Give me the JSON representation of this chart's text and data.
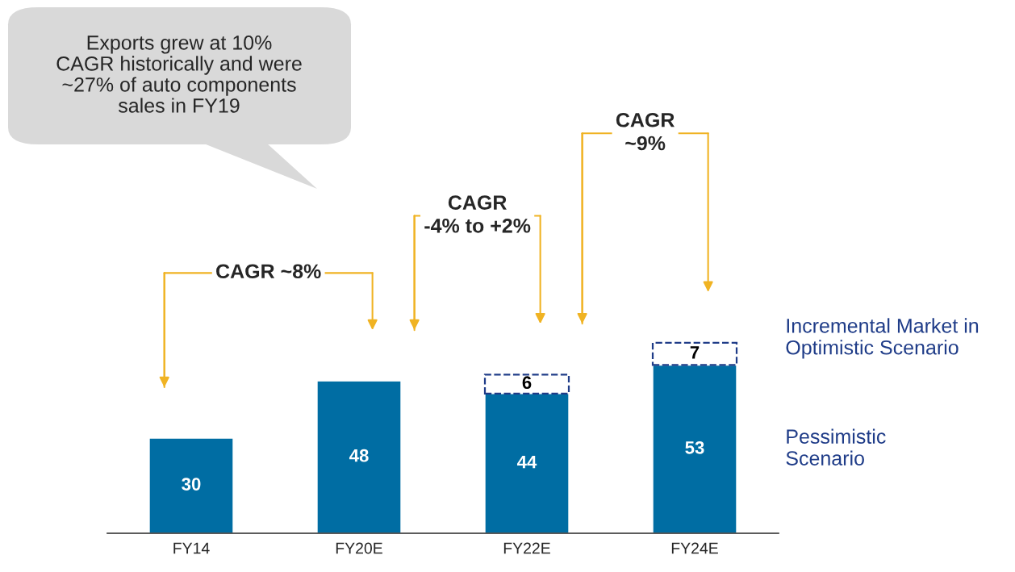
{
  "chart_data": {
    "type": "bar",
    "stacked": true,
    "categories": [
      "FY14",
      "FY20E",
      "FY22E",
      "FY24E"
    ],
    "series": [
      {
        "name": "Pessimistic\nScenario",
        "color": "#006da3",
        "values": [
          30,
          48,
          44,
          53
        ]
      },
      {
        "name": "Incremental Market in\nOptimistic Scenario",
        "color": "#1f3c88",
        "line_style": "dashed",
        "values": [
          null,
          null,
          6,
          7
        ]
      }
    ],
    "data_labels": true,
    "legend": "right",
    "annotations": [
      "Exports grew at 10%\nCAGR historically and were\n~27% of auto components\nsales in FY19",
      "CAGR ~8%",
      "CAGR\n-4% to +2%",
      "CAGR\n~9%"
    ]
  }
}
